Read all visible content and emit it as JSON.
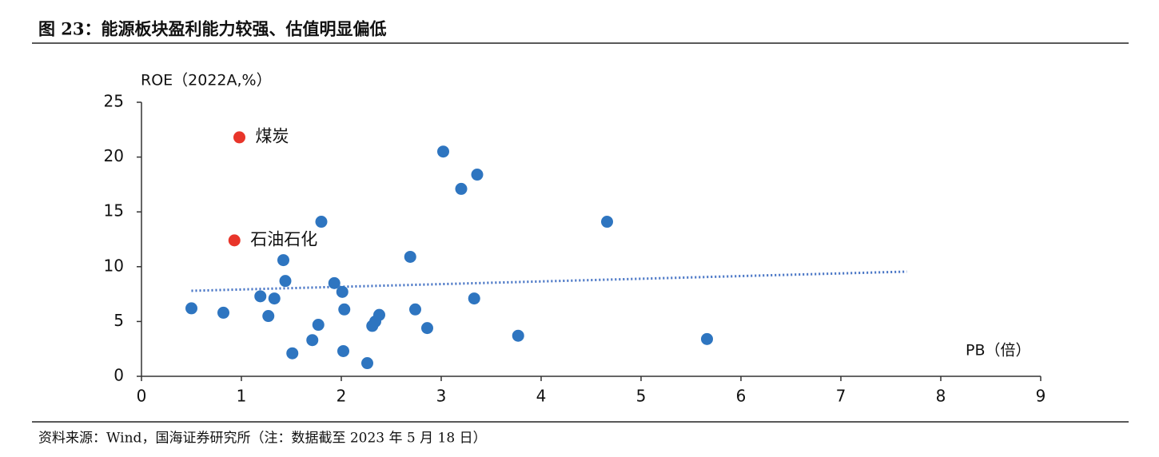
{
  "header": {
    "title": "图 23：能源板块盈利能力较强、估值明显偏低"
  },
  "chart_data": {
    "type": "scatter",
    "y_label": "ROE（2022A,%）",
    "x_label": "PB（倍）",
    "xlim": [
      0,
      9
    ],
    "xticks": [
      0,
      1,
      2,
      3,
      4,
      5,
      6,
      7,
      8,
      9
    ],
    "ylim": [
      0,
      25
    ],
    "yticks": [
      0,
      5,
      10,
      15,
      20,
      25
    ],
    "series": [
      {
        "color": "#2e75c0",
        "x": [
          0.5,
          0.82,
          1.19,
          1.27,
          1.33,
          1.42,
          1.44,
          1.51,
          1.71,
          1.77,
          1.8,
          1.93,
          2.01,
          2.02,
          2.03,
          2.26,
          2.31,
          2.34,
          2.38,
          2.69,
          2.74,
          2.86,
          3.02,
          3.2,
          3.33,
          3.36,
          3.77,
          4.66,
          5.66
        ],
        "values": [
          6.2,
          5.8,
          7.3,
          5.5,
          7.1,
          10.6,
          8.7,
          2.1,
          3.3,
          4.7,
          14.1,
          8.5,
          7.7,
          2.3,
          6.1,
          1.2,
          4.6,
          5.0,
          5.6,
          10.9,
          6.1,
          4.4,
          20.5,
          17.1,
          7.1,
          18.4,
          3.7,
          14.1,
          3.4
        ]
      },
      {
        "color": "#e8352a",
        "x": [
          0.98,
          0.93
        ],
        "values": [
          21.8,
          12.4
        ],
        "labels": [
          "煤炭",
          "石油石化"
        ]
      }
    ],
    "trendline": {
      "color": "#4472c4",
      "x": [
        0.5,
        7.66
      ],
      "values": [
        7.8,
        9.55
      ]
    }
  },
  "footer": {
    "source": "资料来源：Wind，国海证券研究所（注：数据截至 2023 年 5 月 18 日）"
  }
}
